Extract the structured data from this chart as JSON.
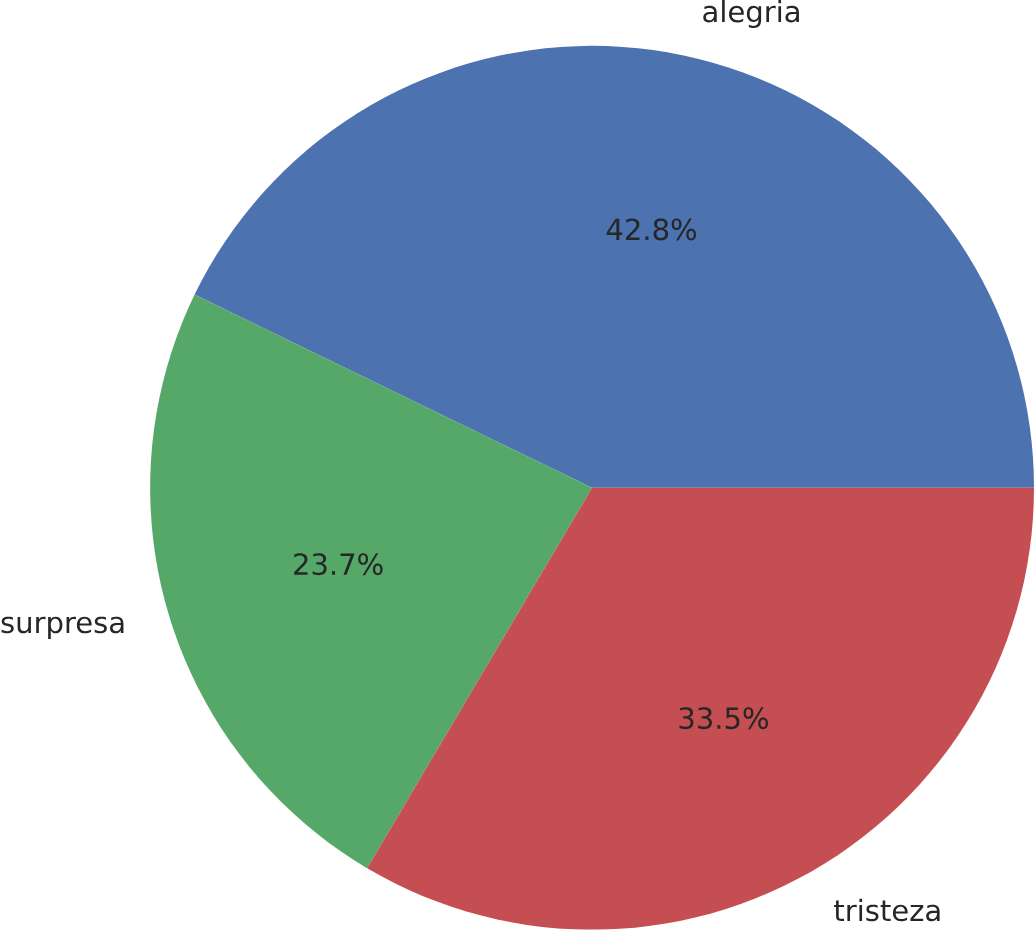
{
  "chart_data": {
    "type": "pie",
    "categories": [
      "alegria",
      "surpresa",
      "tristeza"
    ],
    "values": [
      42.8,
      23.7,
      33.5
    ],
    "value_labels": [
      "42.8%",
      "23.7%",
      "33.5%"
    ],
    "colors": [
      "#4c72b0",
      "#55a868",
      "#c44e52"
    ]
  }
}
